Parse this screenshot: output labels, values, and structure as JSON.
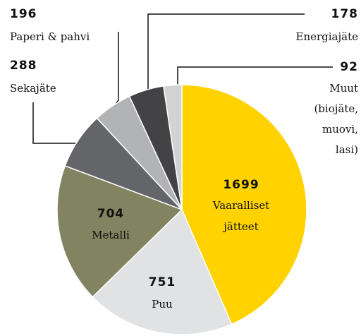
{
  "chart_data": {
    "type": "pie",
    "categories": [
      [
        "Vaaralliset",
        "jätteet"
      ],
      [
        "Puu"
      ],
      [
        "Metalli"
      ],
      [
        "Sekajäte"
      ],
      [
        "Paperi & pahvi"
      ],
      [
        "Energiajäte"
      ],
      [
        "Muut",
        "(biojäte,",
        "muovi,",
        "lasi)"
      ]
    ],
    "values": [
      1699,
      751,
      704,
      288,
      196,
      178,
      92
    ],
    "colors": [
      "#ffd200",
      "#e1e2e3",
      "#828361",
      "#646569",
      "#b2b3b5",
      "#434346",
      "#d3d3d3"
    ]
  }
}
